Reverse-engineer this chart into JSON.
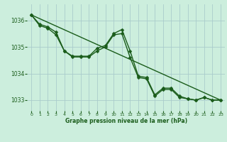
{
  "background_color": "#cceedd",
  "grid_color": "#aacccc",
  "line_color": "#1a5c1a",
  "xlabel": "Graphe pression niveau de la mer (hPa)",
  "xlim": [
    -0.5,
    23.5
  ],
  "ylim": [
    1032.6,
    1036.6
  ],
  "yticks": [
    1033,
    1034,
    1035,
    1036
  ],
  "xticks": [
    0,
    1,
    2,
    3,
    4,
    5,
    6,
    7,
    8,
    9,
    10,
    11,
    12,
    13,
    14,
    15,
    16,
    17,
    18,
    19,
    20,
    21,
    22,
    23
  ],
  "series1_x": [
    0,
    1,
    2,
    3,
    4,
    5,
    6,
    7,
    8,
    9,
    10,
    11,
    12,
    13,
    14,
    15,
    16,
    17,
    18,
    19,
    20,
    21,
    22,
    23
  ],
  "series1_y": [
    1036.2,
    1035.85,
    1035.75,
    1035.55,
    1034.85,
    1034.65,
    1034.65,
    1034.65,
    1034.95,
    1035.05,
    1035.5,
    1035.65,
    1034.85,
    1033.9,
    1033.85,
    1033.2,
    1033.45,
    1033.45,
    1033.15,
    1033.05,
    1033.0,
    1033.1,
    1033.0,
    1033.0
  ],
  "series2_x": [
    0,
    1,
    2,
    3,
    4,
    5,
    6,
    7,
    8,
    9,
    10,
    11,
    12,
    13,
    14,
    15,
    16,
    17,
    18,
    19,
    20,
    21,
    22,
    23
  ],
  "series2_y": [
    1036.2,
    1035.8,
    1035.7,
    1035.45,
    1034.85,
    1034.62,
    1034.62,
    1034.62,
    1034.85,
    1035.0,
    1035.45,
    1035.5,
    1034.6,
    1033.85,
    1033.8,
    1033.15,
    1033.4,
    1033.4,
    1033.1,
    1033.05,
    1033.0,
    1033.1,
    1033.0,
    1033.0
  ],
  "series3_x": [
    0,
    23
  ],
  "series3_y": [
    1036.2,
    1033.0
  ],
  "marker_size": 2.5,
  "line_width": 1.0
}
